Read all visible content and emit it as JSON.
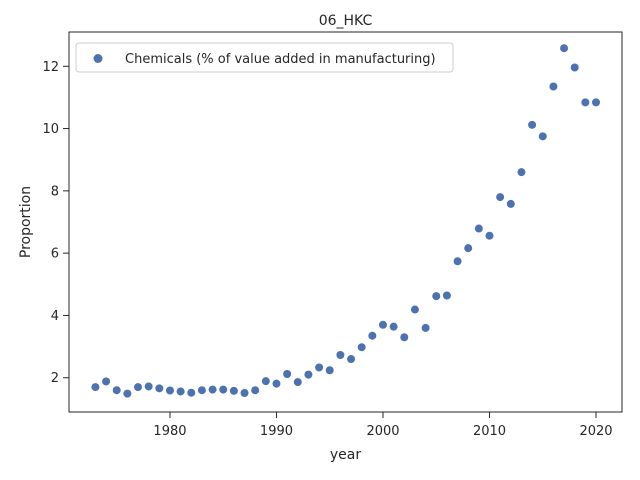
{
  "chart_data": {
    "type": "scatter",
    "title": "06_HKC",
    "xlabel": "year",
    "ylabel": "Proportion",
    "xlim": [
      1970.5,
      1972.5
    ],
    "ylim": [
      0.9,
      13.1
    ],
    "xticks": [
      1980,
      1990,
      2000,
      2010,
      2020
    ],
    "yticks": [
      2,
      4,
      6,
      8,
      10,
      12
    ],
    "grid": false,
    "legend_position": "top-left",
    "series": [
      {
        "name": "Chemicals (% of value added in manufacturing)",
        "color": "#4c72b0",
        "x": [
          1973,
          1974,
          1975,
          1976,
          1977,
          1978,
          1979,
          1980,
          1981,
          1982,
          1983,
          1984,
          1985,
          1986,
          1987,
          1988,
          1989,
          1990,
          1991,
          1992,
          1993,
          1994,
          1995,
          1996,
          1997,
          1998,
          1999,
          2000,
          2001,
          2002,
          2003,
          2004,
          2005,
          2006,
          2007,
          2008,
          2009,
          2010,
          2011,
          2012,
          2013,
          2014,
          2015,
          2016,
          2017,
          2018,
          2019,
          2020
        ],
        "y": [
          1.7,
          1.88,
          1.6,
          1.49,
          1.7,
          1.72,
          1.66,
          1.59,
          1.56,
          1.52,
          1.6,
          1.62,
          1.62,
          1.58,
          1.51,
          1.6,
          1.89,
          1.81,
          2.12,
          1.86,
          2.1,
          2.33,
          2.24,
          2.73,
          2.6,
          2.98,
          3.35,
          3.7,
          3.64,
          3.3,
          4.19,
          3.6,
          4.62,
          4.64,
          5.74,
          6.16,
          6.79,
          6.56,
          7.8,
          7.58,
          8.6,
          10.12,
          9.75,
          11.35,
          12.58,
          11.96,
          10.84,
          10.84
        ]
      }
    ]
  }
}
